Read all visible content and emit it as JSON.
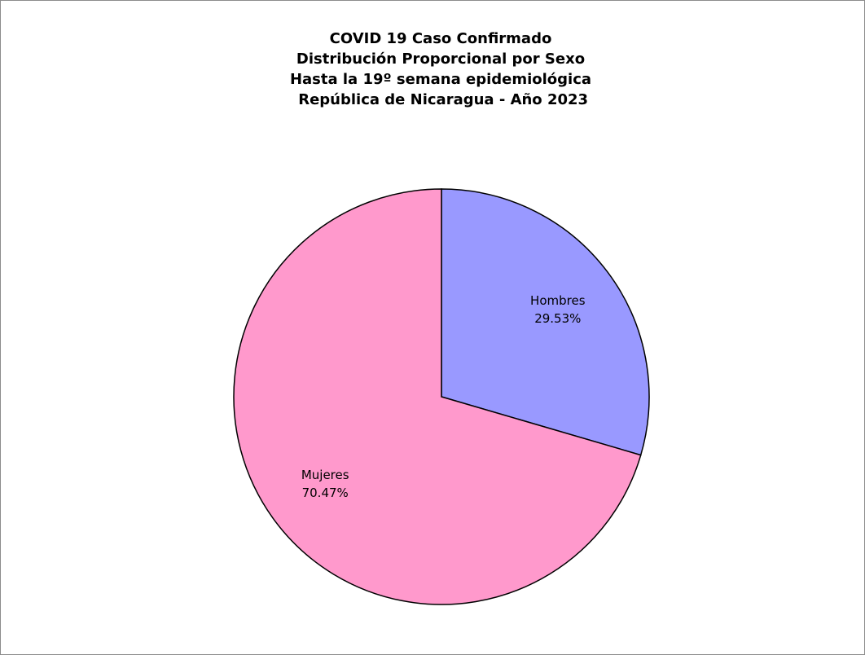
{
  "chart_data": {
    "type": "pie",
    "title_lines": [
      "COVID 19 Caso Confirmado",
      "Distribución Proporcional por Sexo",
      "Hasta la 19º semana epidemiológica",
      " República de Nicaragua - Año 2023"
    ],
    "slices": [
      {
        "label": "Hombres",
        "value": 29.53,
        "display": "29.53%",
        "color": "#9999ff"
      },
      {
        "label": "Mujeres",
        "value": 70.47,
        "display": "70.47%",
        "color": "#ff99cc"
      }
    ],
    "legend": "none"
  }
}
